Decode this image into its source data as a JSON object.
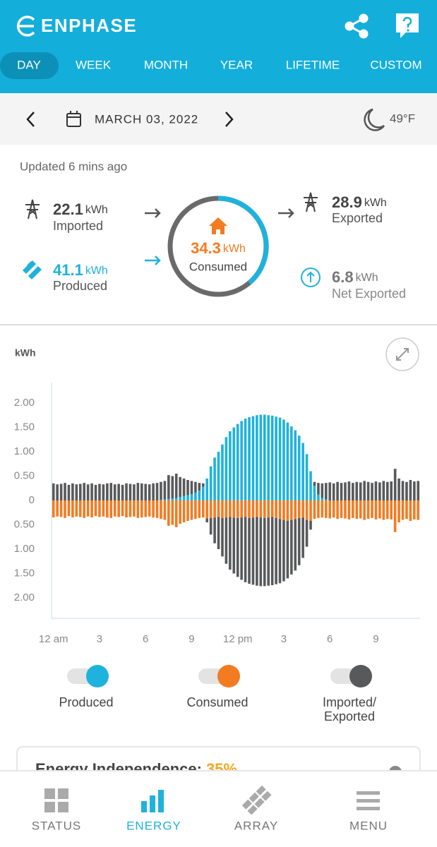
{
  "header": {
    "brand": "ENPHASE"
  },
  "tabs": [
    "DAY",
    "WEEK",
    "MONTH",
    "YEAR",
    "LIFETIME",
    "CUSTOM"
  ],
  "date_bar": {
    "date": "MARCH 03, 2022",
    "temperature": "49°F"
  },
  "summary": {
    "updated": "Updated 6 mins ago",
    "imported": {
      "value": 22.1,
      "unit": "kWh",
      "label": "Imported"
    },
    "produced": {
      "value": 41.1,
      "unit": "kWh",
      "label": "Produced"
    },
    "consumed": {
      "value": 34.3,
      "unit": "kWh",
      "label": "Consumed"
    },
    "exported": {
      "value": 28.9,
      "unit": "kWh",
      "label": "Exported"
    },
    "net_exported": {
      "value": 6.8,
      "unit": "kWh",
      "label": "Net Exported"
    }
  },
  "chart_data": {
    "type": "bar",
    "y_label": "kWh",
    "categories": [
      "12 am",
      null,
      null,
      null,
      null,
      null,
      null,
      null,
      null,
      null,
      null,
      null,
      "3",
      null,
      null,
      null,
      null,
      null,
      null,
      null,
      null,
      null,
      null,
      null,
      "6",
      null,
      null,
      null,
      null,
      null,
      null,
      null,
      null,
      null,
      null,
      null,
      "9",
      null,
      null,
      null,
      null,
      null,
      null,
      null,
      null,
      null,
      null,
      null,
      "12 pm",
      null,
      null,
      null,
      null,
      null,
      null,
      null,
      null,
      null,
      null,
      null,
      "3",
      null,
      null,
      null,
      null,
      null,
      null,
      null,
      null,
      null,
      null,
      null,
      "6",
      null,
      null,
      null,
      null,
      null,
      null,
      null,
      null,
      null,
      null,
      null,
      "9",
      null,
      null,
      null,
      null,
      null,
      null,
      null,
      null,
      null,
      null,
      null
    ],
    "ylim": [
      -2.42,
      2.42
    ],
    "yticks": [
      {
        "value": 2,
        "label": "2.00"
      },
      {
        "value": 1.5,
        "label": "1.50"
      },
      {
        "value": 1,
        "label": "1.00"
      },
      {
        "value": 0.5,
        "label": "0.50"
      },
      0,
      {
        "value": -0.5,
        "label": "0.50"
      },
      {
        "value": -1,
        "label": "1.00"
      },
      {
        "value": -1.5,
        "label": "1.50"
      },
      {
        "value": -2,
        "label": "2.00"
      }
    ],
    "series": [
      {
        "name": "Produced",
        "color": "#1fb2dc",
        "values": [
          0,
          0,
          0,
          0,
          0,
          0,
          0,
          0,
          0,
          0,
          0,
          0,
          0,
          0,
          0,
          0,
          0,
          0,
          0,
          0,
          0,
          0,
          0,
          0,
          0,
          0,
          0,
          0,
          0.01,
          0.02,
          0.03,
          0.04,
          0.05,
          0.07,
          0.09,
          0.11,
          0.13,
          0.16,
          0.2,
          0.28,
          0.45,
          0.7,
          0.88,
          1.0,
          1.15,
          1.3,
          1.42,
          1.5,
          1.57,
          1.63,
          1.68,
          1.71,
          1.73,
          1.75,
          1.76,
          1.76,
          1.75,
          1.74,
          1.72,
          1.7,
          1.66,
          1.6,
          1.52,
          1.44,
          1.33,
          1.18,
          0.95,
          0.6,
          0.3,
          0.12,
          0.05,
          0.02,
          0,
          0,
          0,
          0,
          0,
          0,
          0,
          0,
          0,
          0,
          0,
          0,
          0,
          0,
          0,
          0,
          0,
          0,
          0,
          0,
          0,
          0,
          0,
          0
        ]
      },
      {
        "name": "Consumed",
        "color": "#f37b21",
        "values": [
          -0.35,
          -0.33,
          -0.34,
          -0.36,
          -0.32,
          -0.35,
          -0.33,
          -0.34,
          -0.36,
          -0.33,
          -0.35,
          -0.32,
          -0.34,
          -0.33,
          -0.35,
          -0.36,
          -0.33,
          -0.34,
          -0.32,
          -0.35,
          -0.34,
          -0.33,
          -0.36,
          -0.35,
          -0.34,
          -0.33,
          -0.35,
          -0.36,
          -0.38,
          -0.4,
          -0.52,
          -0.5,
          -0.55,
          -0.48,
          -0.45,
          -0.42,
          -0.4,
          -0.38,
          -0.36,
          -0.35,
          -0.37,
          -0.36,
          -0.35,
          -0.34,
          -0.36,
          -0.35,
          -0.34,
          -0.35,
          -0.36,
          -0.35,
          -0.34,
          -0.36,
          -0.35,
          -0.34,
          -0.35,
          -0.36,
          -0.35,
          -0.34,
          -0.36,
          -0.38,
          -0.4,
          -0.42,
          -0.4,
          -0.38,
          -0.36,
          -0.35,
          -0.4,
          -0.42,
          -0.38,
          -0.36,
          -0.35,
          -0.36,
          -0.37,
          -0.35,
          -0.38,
          -0.36,
          -0.37,
          -0.39,
          -0.36,
          -0.38,
          -0.37,
          -0.4,
          -0.38,
          -0.36,
          -0.39,
          -0.37,
          -0.4,
          -0.38,
          -0.39,
          -0.65,
          -0.45,
          -0.4,
          -0.38,
          -0.42,
          -0.39,
          -0.4
        ]
      },
      {
        "name": "Imported/ Exported",
        "color": "#58595b",
        "values": [
          0.35,
          0.33,
          0.34,
          0.36,
          0.32,
          0.35,
          0.33,
          0.34,
          0.36,
          0.33,
          0.35,
          0.32,
          0.34,
          0.33,
          0.35,
          0.36,
          0.33,
          0.34,
          0.32,
          0.35,
          0.34,
          0.33,
          0.36,
          0.35,
          0.34,
          0.33,
          0.35,
          0.36,
          0.37,
          0.38,
          0.49,
          0.46,
          0.5,
          0.41,
          0.36,
          0.31,
          0.27,
          0.22,
          0.16,
          0.07,
          -0.08,
          -0.34,
          -0.53,
          -0.66,
          -0.79,
          -0.95,
          -1.08,
          -1.15,
          -1.21,
          -1.28,
          -1.34,
          -1.35,
          -1.38,
          -1.41,
          -1.41,
          -1.4,
          -1.4,
          -1.4,
          -1.36,
          -1.32,
          -1.26,
          -1.18,
          -1.12,
          -1.06,
          -0.97,
          -0.83,
          -0.55,
          -0.18,
          0.08,
          0.24,
          0.3,
          0.34,
          0.37,
          0.35,
          0.38,
          0.36,
          0.37,
          0.39,
          0.36,
          0.38,
          0.37,
          0.4,
          0.38,
          0.36,
          0.39,
          0.37,
          0.4,
          0.38,
          0.39,
          0.65,
          0.45,
          0.4,
          0.38,
          0.42,
          0.39,
          0.4
        ]
      }
    ]
  },
  "independence_card": {
    "title": "Energy Independence:",
    "value": "35%"
  },
  "bottom_nav": [
    "STATUS",
    "ENERGY",
    "ARRAY",
    "MENU"
  ]
}
